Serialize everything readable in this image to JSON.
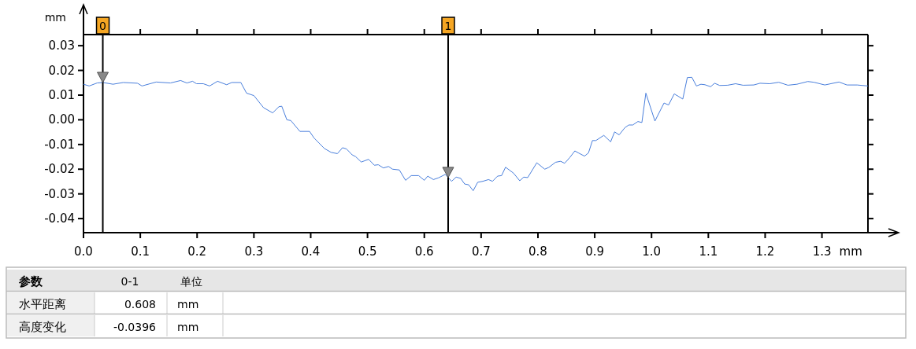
{
  "chart_data": {
    "type": "line",
    "xlabel": "mm",
    "ylabel": "mm",
    "xlim": [
      0,
      1.381
    ],
    "ylim": [
      -0.0457,
      0.0345
    ],
    "xticks": [
      {
        "value": 0,
        "label": "0.0"
      },
      0.1,
      0.2,
      0.3,
      0.4,
      0.5,
      0.6,
      0.7,
      0.8,
      0.9,
      {
        "value": 1,
        "label": "1.0"
      },
      1.1,
      1.2,
      1.3
    ],
    "yticks": [
      -0.04,
      -0.03,
      -0.02,
      -0.01,
      {
        "value": 0,
        "label": "0.00"
      },
      0.01,
      0.02,
      0.03
    ],
    "grid": false,
    "ref_lines": [
      {
        "axis": "x",
        "value": 0.034,
        "label": "0",
        "color": "#000000"
      },
      {
        "axis": "x",
        "value": 0.642,
        "label": "1",
        "color": "#000000"
      }
    ],
    "annotations": [
      "参数",
      "0-1",
      "单位",
      "水平距离",
      "0.608",
      "mm",
      "高度变化",
      "-0.0396",
      "mm"
    ],
    "series": [
      {
        "color": "#4a7fdc",
        "x": [
          0,
          0.01,
          0.024,
          0.034,
          0.052,
          0.07,
          0.095,
          0.103,
          0.128,
          0.153,
          0.171,
          0.182,
          0.192,
          0.199,
          0.211,
          0.222,
          0.236,
          0.252,
          0.261,
          0.277,
          0.287,
          0.3,
          0.317,
          0.333,
          0.344,
          0.349,
          0.358,
          0.365,
          0.381,
          0.398,
          0.406,
          0.424,
          0.436,
          0.447,
          0.456,
          0.463,
          0.473,
          0.479,
          0.489,
          0.502,
          0.512,
          0.519,
          0.528,
          0.537,
          0.544,
          0.556,
          0.567,
          0.577,
          0.59,
          0.6,
          0.606,
          0.616,
          0.625,
          0.637,
          0.648,
          0.656,
          0.664,
          0.671,
          0.678,
          0.686,
          0.694,
          0.703,
          0.713,
          0.72,
          0.729,
          0.736,
          0.743,
          0.757,
          0.768,
          0.775,
          0.782,
          0.798,
          0.812,
          0.819,
          0.831,
          0.84,
          0.847,
          0.856,
          0.865,
          0.872,
          0.882,
          0.889,
          0.896,
          0.902,
          0.916,
          0.928,
          0.935,
          0.943,
          0.953,
          0.96,
          0.967,
          0.976,
          0.983,
          0.99,
          1.006,
          1.022,
          1.03,
          1.04,
          1.055,
          1.063,
          1.071,
          1.079,
          1.087,
          1.094,
          1.104,
          1.111,
          1.12,
          1.134,
          1.148,
          1.161,
          1.18,
          1.191,
          1.208,
          1.224,
          1.24,
          1.256,
          1.275,
          1.286,
          1.305,
          1.33,
          1.344,
          1.362,
          1.381
        ],
        "values": [
          0.0144,
          0.0137,
          0.0149,
          0.0151,
          0.0144,
          0.0151,
          0.0148,
          0.0137,
          0.0153,
          0.0149,
          0.0159,
          0.0149,
          0.0156,
          0.0146,
          0.0146,
          0.0137,
          0.0156,
          0.0142,
          0.0151,
          0.0151,
          0.0108,
          0.0098,
          0.0049,
          0.0028,
          0.0053,
          0.0055,
          0,
          -0.0003,
          -0.0047,
          -0.0047,
          -0.0074,
          -0.0116,
          -0.0132,
          -0.0137,
          -0.0113,
          -0.0118,
          -0.0142,
          -0.0149,
          -0.0171,
          -0.016,
          -0.0184,
          -0.0182,
          -0.0195,
          -0.0189,
          -0.02,
          -0.0203,
          -0.0245,
          -0.0226,
          -0.0226,
          -0.0245,
          -0.0228,
          -0.0242,
          -0.0235,
          -0.0221,
          -0.0249,
          -0.0232,
          -0.0237,
          -0.026,
          -0.0263,
          -0.0287,
          -0.0253,
          -0.0249,
          -0.0242,
          -0.0249,
          -0.0228,
          -0.0226,
          -0.0192,
          -0.0216,
          -0.0247,
          -0.0232,
          -0.0234,
          -0.0174,
          -0.02,
          -0.0193,
          -0.0172,
          -0.0168,
          -0.0176,
          -0.0153,
          -0.0126,
          -0.0135,
          -0.0147,
          -0.0134,
          -0.0084,
          -0.0084,
          -0.0063,
          -0.0089,
          -0.0049,
          -0.0061,
          -0.0032,
          -0.0021,
          -0.0021,
          -0.0007,
          -0.0011,
          0.0108,
          -0.0005,
          0.0068,
          0.006,
          0.0105,
          0.0084,
          0.0171,
          0.0172,
          0.0137,
          0.0144,
          0.0142,
          0.0134,
          0.0148,
          0.0139,
          0.014,
          0.0146,
          0.014,
          0.0141,
          0.0148,
          0.0146,
          0.0152,
          0.014,
          0.0144,
          0.0155,
          0.0152,
          0.0141,
          0.0153,
          0.0141,
          0.0141,
          0.0137
        ]
      }
    ]
  }
}
